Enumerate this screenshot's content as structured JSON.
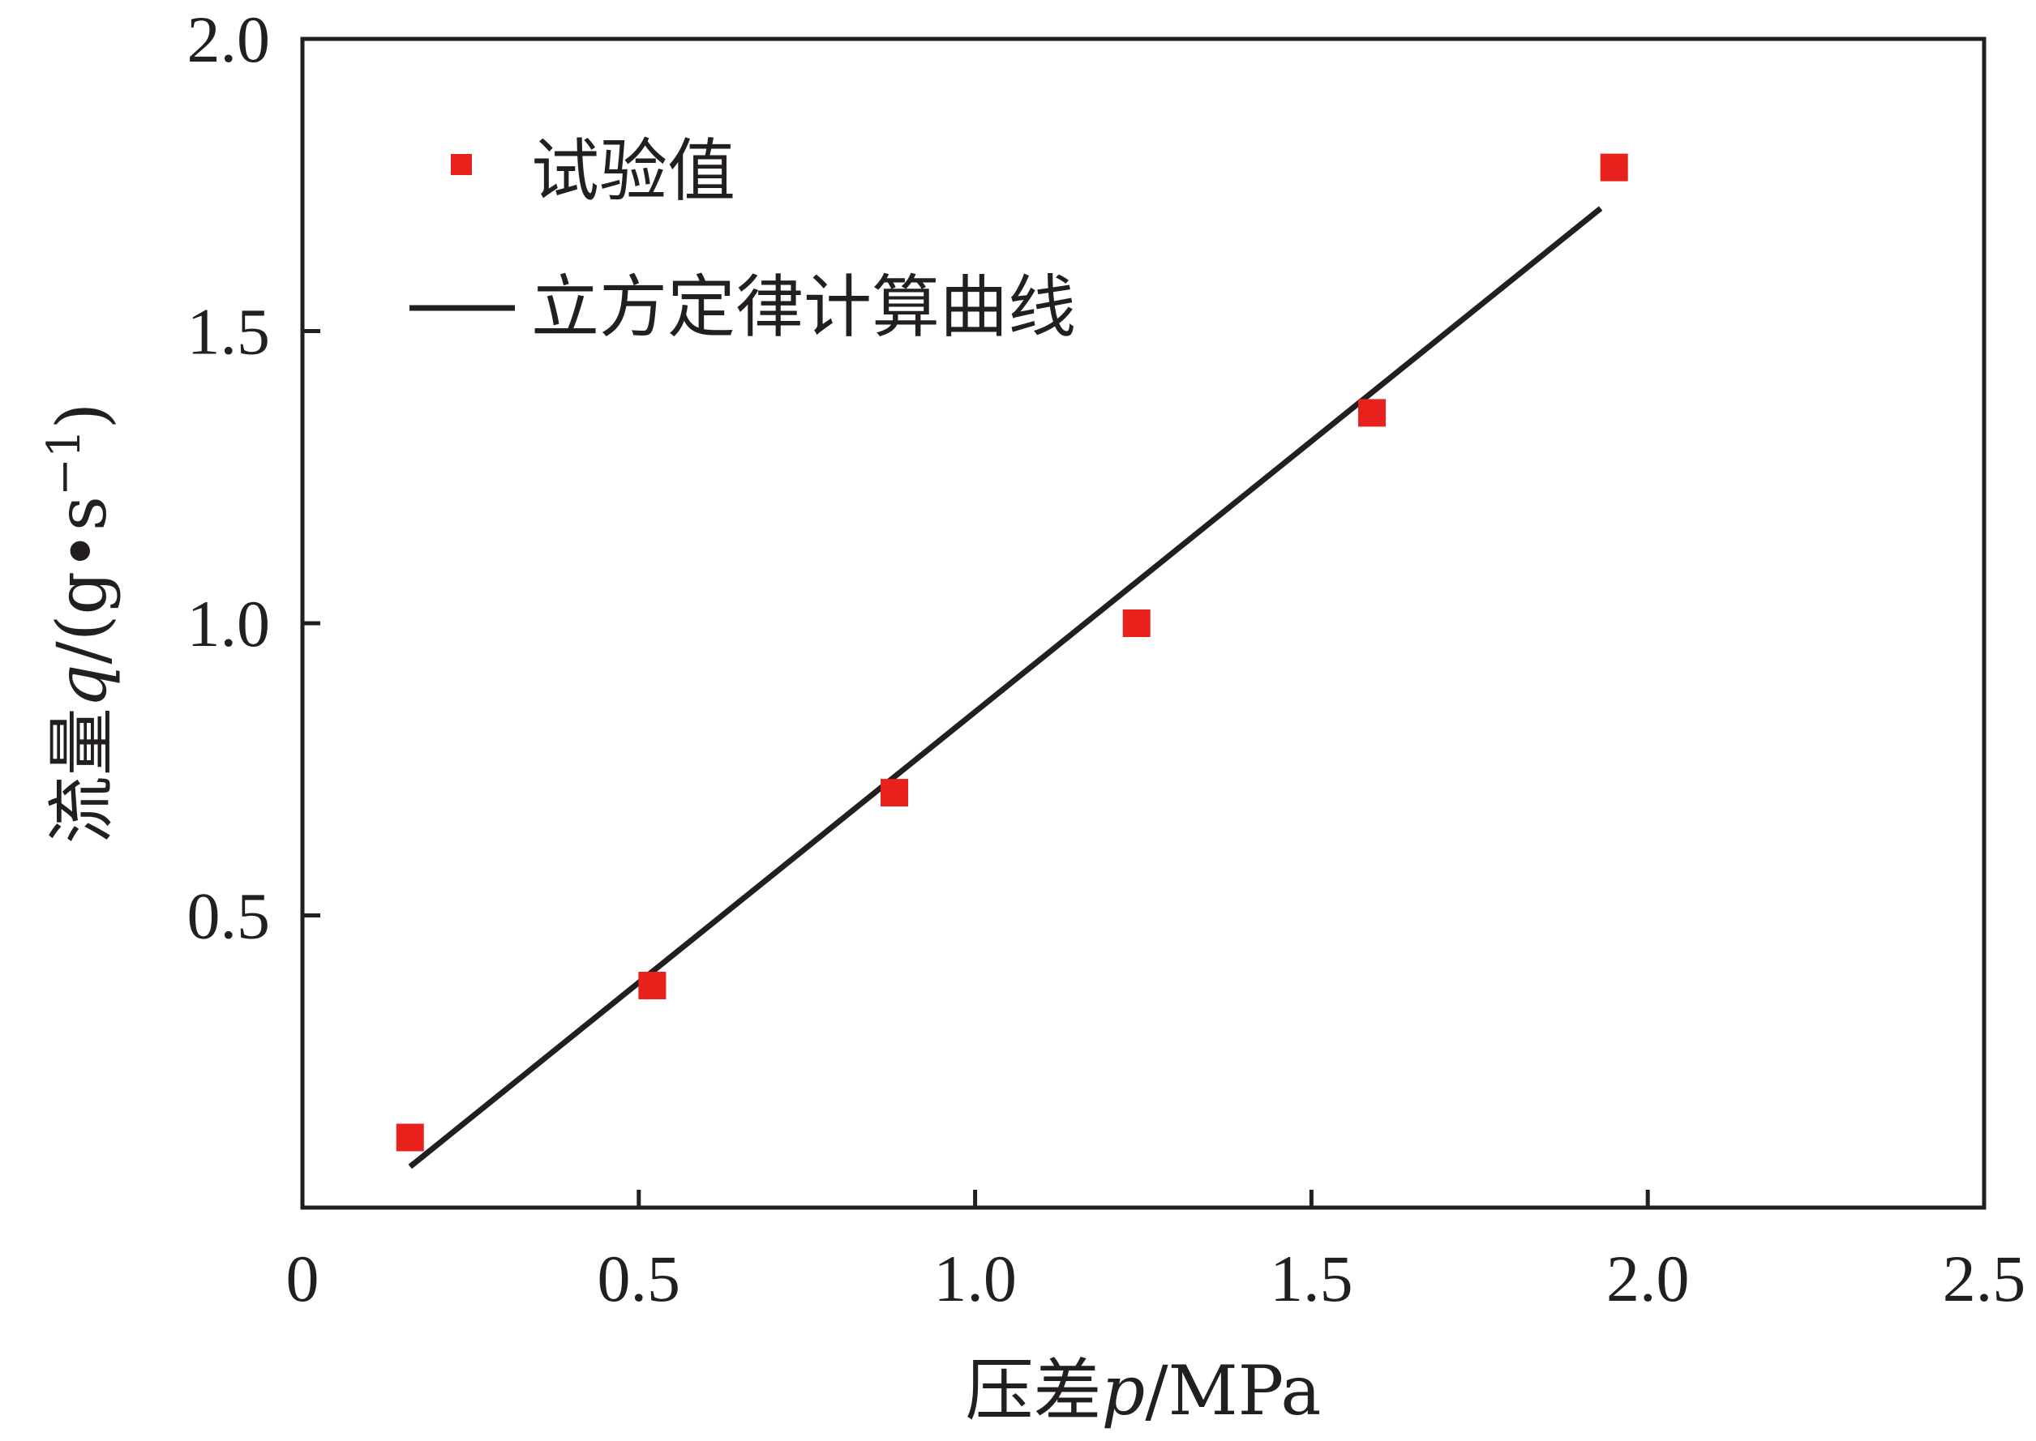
{
  "chart_data": {
    "type": "scatter",
    "xlim": [
      0,
      2.5
    ],
    "ylim": [
      0,
      2.0
    ],
    "xticks": [
      0,
      0.5,
      1.0,
      1.5,
      2.0,
      2.5
    ],
    "yticks": [
      0.5,
      1.0,
      1.5,
      2.0
    ],
    "xtick_labels": [
      "0",
      "0.5",
      "1.0",
      "1.5",
      "2.0",
      "2.5"
    ],
    "ytick_labels": [
      "0.5",
      "1.0",
      "1.5",
      "2.0"
    ],
    "xlabel_prefix": "压差",
    "xlabel_var": "p",
    "xlabel_unit": "/MPa",
    "ylabel_prefix": "流量",
    "ylabel_var": "q",
    "ylabel_unit": "/(g•s",
    "ylabel_sup": "−1",
    "ylabel_close": ")",
    "grid": false,
    "legend_position": "top-left",
    "series": [
      {
        "name": "试验值",
        "kind": "markers",
        "color": "#e8211d",
        "x": [
          0.16,
          0.52,
          0.88,
          1.24,
          1.59,
          1.95
        ],
        "y": [
          0.12,
          0.38,
          0.71,
          1.0,
          1.36,
          1.78
        ]
      },
      {
        "name": "立方定律计算曲线",
        "kind": "line",
        "color": "#231f20",
        "x": [
          0.16,
          1.93
        ],
        "y": [
          0.07,
          1.71
        ]
      }
    ]
  }
}
